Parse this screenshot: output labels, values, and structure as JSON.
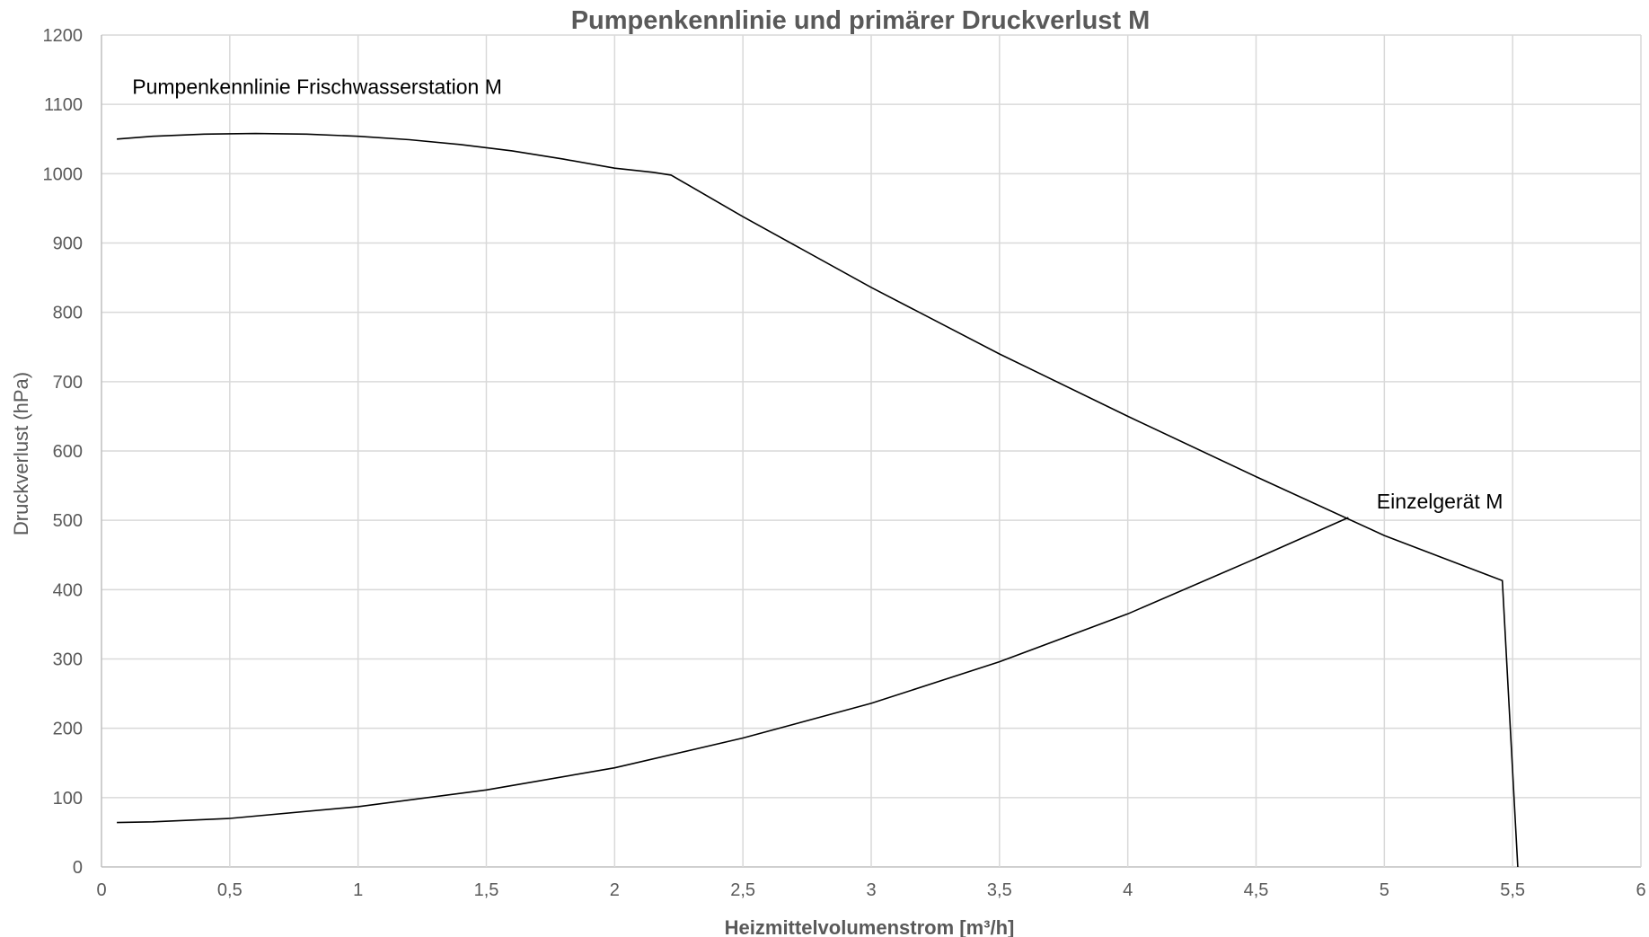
{
  "chart_data": {
    "type": "line",
    "title": "Pumpenkennlinie und primärer Druckverlust M",
    "xlabel": "Heizmittelvolumenstrom [m³/h]",
    "ylabel": "Druckverlust (hPa)",
    "xlim": [
      0,
      6
    ],
    "ylim": [
      0,
      1200
    ],
    "x_ticks": [
      0,
      0.5,
      1,
      1.5,
      2,
      2.5,
      3,
      3.5,
      4,
      4.5,
      5,
      5.5,
      6
    ],
    "x_tick_labels": [
      "0",
      "0,5",
      "1",
      "1,5",
      "2",
      "2,5",
      "3",
      "3,5",
      "4",
      "4,5",
      "5",
      "5,5",
      "6"
    ],
    "y_ticks": [
      0,
      100,
      200,
      300,
      400,
      500,
      600,
      700,
      800,
      900,
      1000,
      1100,
      1200
    ],
    "y_tick_labels": [
      "0",
      "100",
      "200",
      "300",
      "400",
      "500",
      "600",
      "700",
      "800",
      "900",
      "1000",
      "1100",
      "1200"
    ],
    "grid": true,
    "legend": "none",
    "annotations": [
      {
        "text": "Pumpenkennlinie Frischwasserstation M",
        "x": 0.12,
        "y": 1115
      },
      {
        "text": "Einzelgerät M",
        "x": 4.97,
        "y": 517
      }
    ],
    "series": [
      {
        "color": "#000000",
        "x": [
          0.06,
          0.2,
          0.4,
          0.6,
          0.8,
          1.0,
          1.2,
          1.4,
          1.6,
          1.8,
          2.0,
          2.15,
          2.22,
          2.5,
          3.0,
          3.5,
          4.0,
          4.5,
          5.0,
          5.46,
          5.52
        ],
        "y": [
          1050,
          1054,
          1057,
          1058,
          1057,
          1054,
          1049,
          1042,
          1033,
          1021,
          1008,
          1002,
          998,
          938,
          836,
          740,
          650,
          563,
          478,
          413,
          0
        ]
      },
      {
        "color": "#000000",
        "x": [
          0.06,
          0.2,
          0.5,
          1.0,
          1.5,
          2.0,
          2.5,
          3.0,
          3.5,
          4.0,
          4.5,
          4.86
        ],
        "y": [
          64,
          65,
          70,
          87,
          111,
          143,
          186,
          236,
          296,
          365,
          445,
          504
        ]
      }
    ]
  }
}
